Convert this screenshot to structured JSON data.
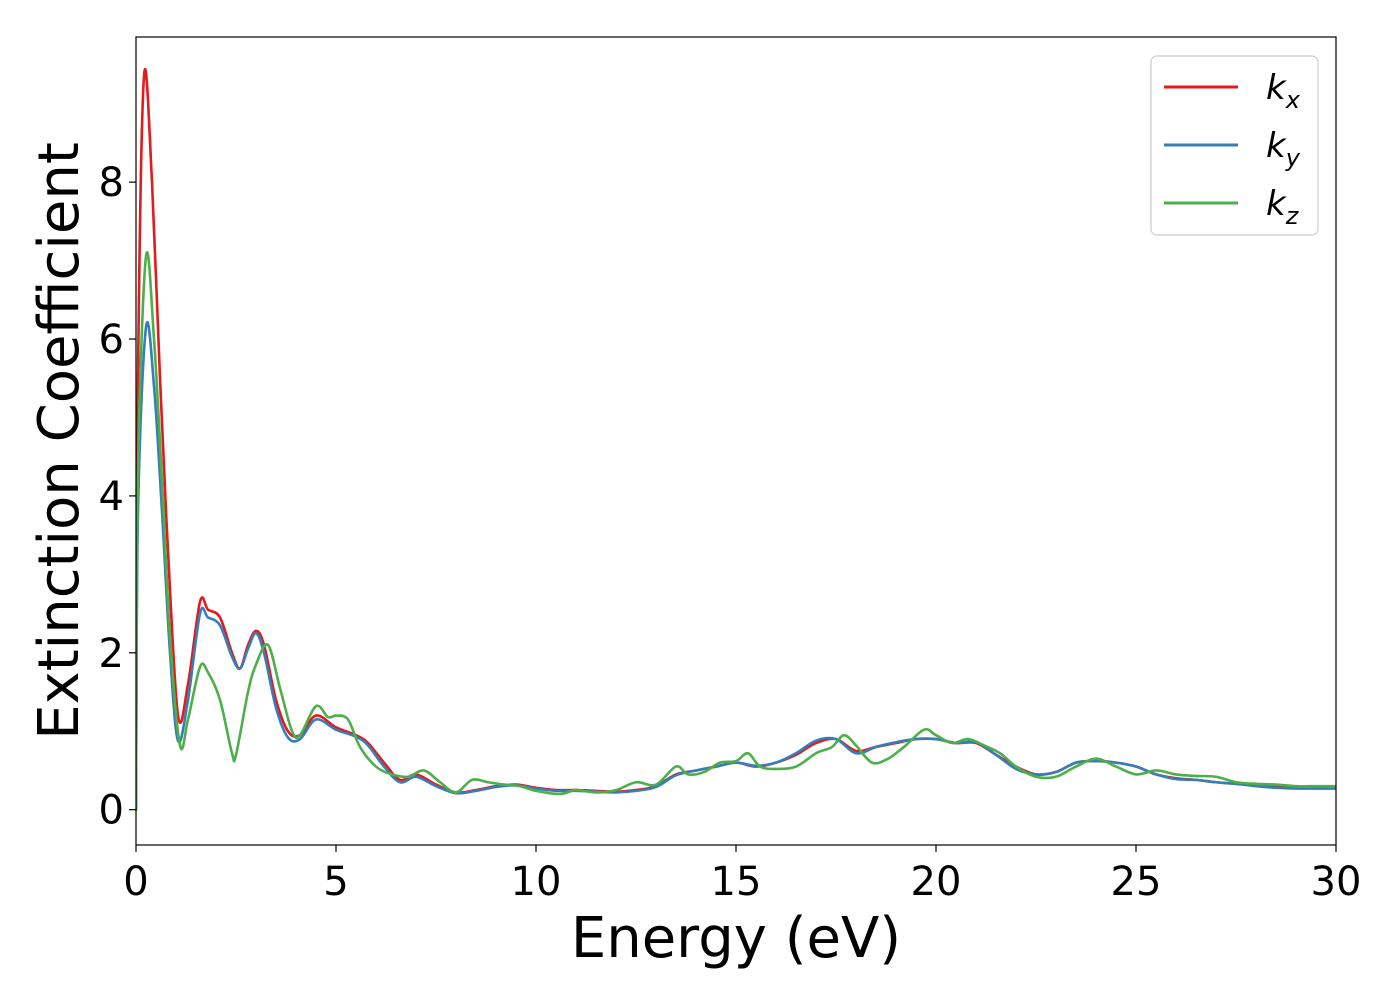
{
  "chart_data": {
    "type": "line",
    "title": "",
    "xlabel": "Energy (eV)",
    "ylabel": "Extinction Coefficient",
    "xlim": [
      0,
      30
    ],
    "ylim": [
      -0.45,
      9.85
    ],
    "xticks": [
      0,
      5,
      10,
      15,
      20,
      25,
      30
    ],
    "yticks": [
      0,
      2,
      4,
      6,
      8
    ],
    "grid": false,
    "legend_position": "top-right",
    "series": [
      {
        "name_base": "k",
        "name_sub": "x",
        "color": "#e41a1c",
        "x": [
          0,
          0.05,
          0.2,
          0.4,
          0.6,
          0.8,
          1.05,
          1.3,
          1.6,
          1.8,
          2.1,
          2.4,
          2.6,
          2.8,
          3.0,
          3.2,
          3.5,
          3.8,
          4.1,
          4.5,
          5.0,
          5.5,
          5.8,
          6.2,
          6.6,
          7.0,
          7.5,
          8.0,
          8.5,
          9.0,
          9.5,
          10.0,
          10.5,
          11.0,
          11.5,
          12.0,
          12.5,
          13.0,
          13.5,
          14.0,
          14.5,
          15.0,
          15.5,
          16.0,
          16.5,
          17.0,
          17.5,
          18.0,
          18.5,
          19.0,
          19.5,
          20.0,
          20.5,
          21.0,
          21.5,
          22.0,
          22.5,
          23.0,
          23.5,
          24.0,
          24.5,
          25.0,
          25.5,
          26.0,
          26.5,
          27.0,
          27.5,
          28.0,
          28.5,
          29.0,
          29.5,
          30.0
        ],
        "y": [
          0.0,
          5.5,
          9.35,
          8.0,
          5.5,
          3.3,
          1.2,
          1.6,
          2.65,
          2.55,
          2.45,
          2.0,
          1.8,
          2.1,
          2.28,
          2.1,
          1.4,
          1.0,
          0.95,
          1.2,
          1.05,
          0.95,
          0.85,
          0.6,
          0.38,
          0.45,
          0.32,
          0.22,
          0.25,
          0.3,
          0.32,
          0.28,
          0.25,
          0.25,
          0.24,
          0.23,
          0.25,
          0.3,
          0.45,
          0.5,
          0.55,
          0.6,
          0.55,
          0.6,
          0.7,
          0.85,
          0.9,
          0.75,
          0.8,
          0.85,
          0.9,
          0.9,
          0.85,
          0.85,
          0.7,
          0.55,
          0.45,
          0.48,
          0.6,
          0.62,
          0.6,
          0.55,
          0.45,
          0.4,
          0.38,
          0.35,
          0.33,
          0.32,
          0.3,
          0.28,
          0.28,
          0.28
        ]
      },
      {
        "name_base": "k",
        "name_sub": "y",
        "color": "#377eb8",
        "x": [
          0,
          0.05,
          0.25,
          0.45,
          0.65,
          0.85,
          1.05,
          1.3,
          1.6,
          1.8,
          2.1,
          2.4,
          2.6,
          2.8,
          3.0,
          3.2,
          3.5,
          3.8,
          4.1,
          4.5,
          5.0,
          5.5,
          5.8,
          6.2,
          6.6,
          7.0,
          7.5,
          8.0,
          8.5,
          9.0,
          9.5,
          10.0,
          10.5,
          11.0,
          11.5,
          12.0,
          12.5,
          13.0,
          13.5,
          14.0,
          14.5,
          15.0,
          15.5,
          16.0,
          16.5,
          17.0,
          17.5,
          18.0,
          18.5,
          19.0,
          19.5,
          20.0,
          20.5,
          21.0,
          21.5,
          22.0,
          22.5,
          23.0,
          23.5,
          24.0,
          24.5,
          25.0,
          25.5,
          26.0,
          26.5,
          27.0,
          27.5,
          28.0,
          28.5,
          29.0,
          29.5,
          30.0
        ],
        "y": [
          0.0,
          3.8,
          6.15,
          5.4,
          3.8,
          2.0,
          0.88,
          1.4,
          2.5,
          2.45,
          2.35,
          1.95,
          1.8,
          2.05,
          2.25,
          2.0,
          1.3,
          0.92,
          0.9,
          1.15,
          1.02,
          0.93,
          0.82,
          0.55,
          0.35,
          0.42,
          0.3,
          0.21,
          0.24,
          0.29,
          0.31,
          0.27,
          0.24,
          0.24,
          0.23,
          0.22,
          0.24,
          0.29,
          0.44,
          0.5,
          0.55,
          0.6,
          0.56,
          0.6,
          0.72,
          0.88,
          0.9,
          0.72,
          0.8,
          0.86,
          0.9,
          0.9,
          0.85,
          0.86,
          0.7,
          0.52,
          0.45,
          0.48,
          0.6,
          0.62,
          0.6,
          0.55,
          0.45,
          0.39,
          0.38,
          0.35,
          0.33,
          0.3,
          0.28,
          0.27,
          0.27,
          0.27
        ]
      },
      {
        "name_base": "k",
        "name_sub": "z",
        "color": "#4daf4a",
        "x": [
          0,
          0.05,
          0.25,
          0.45,
          0.65,
          0.85,
          1.1,
          1.3,
          1.6,
          1.8,
          2.1,
          2.4,
          2.5,
          2.8,
          3.0,
          3.3,
          3.6,
          3.9,
          4.1,
          4.5,
          4.8,
          5.0,
          5.3,
          5.6,
          6.0,
          6.4,
          6.8,
          7.2,
          7.6,
          8.0,
          8.4,
          8.8,
          9.2,
          9.6,
          10.0,
          10.6,
          11.0,
          11.5,
          12.0,
          12.5,
          13.0,
          13.5,
          13.8,
          14.2,
          14.6,
          15.0,
          15.3,
          15.6,
          16.0,
          16.5,
          17.0,
          17.4,
          17.7,
          18.0,
          18.4,
          18.8,
          19.2,
          19.7,
          20.0,
          20.4,
          20.8,
          21.2,
          21.6,
          22.0,
          22.5,
          23.0,
          23.5,
          24.0,
          24.5,
          25.0,
          25.5,
          26.0,
          26.5,
          27.0,
          27.5,
          28.0,
          28.5,
          29.0,
          29.5,
          30.0
        ],
        "y": [
          0.0,
          4.3,
          7.05,
          6.0,
          4.2,
          2.2,
          0.82,
          1.15,
          1.82,
          1.75,
          1.4,
          0.72,
          0.7,
          1.5,
          1.85,
          2.1,
          1.55,
          1.0,
          0.95,
          1.32,
          1.18,
          1.2,
          1.15,
          0.8,
          0.55,
          0.45,
          0.42,
          0.5,
          0.35,
          0.22,
          0.38,
          0.35,
          0.32,
          0.3,
          0.24,
          0.2,
          0.25,
          0.22,
          0.25,
          0.35,
          0.32,
          0.55,
          0.45,
          0.48,
          0.6,
          0.62,
          0.72,
          0.55,
          0.52,
          0.55,
          0.72,
          0.8,
          0.95,
          0.82,
          0.6,
          0.65,
          0.8,
          1.02,
          0.95,
          0.85,
          0.9,
          0.82,
          0.72,
          0.55,
          0.42,
          0.42,
          0.55,
          0.65,
          0.55,
          0.45,
          0.5,
          0.45,
          0.43,
          0.42,
          0.35,
          0.33,
          0.32,
          0.3,
          0.3,
          0.3
        ]
      }
    ]
  }
}
